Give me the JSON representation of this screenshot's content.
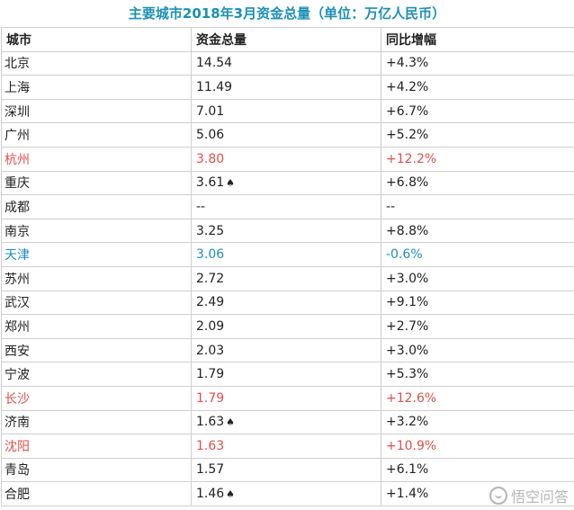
{
  "title": "主要城市2018年3月资金总量（单位：万亿人民币）",
  "headers": {
    "city": "城市",
    "total": "资金总量",
    "yoy": "同比增幅"
  },
  "colors": {
    "title": "#1b8fb8",
    "red": "#e0504a",
    "blue": "#1b8fb8"
  },
  "rows": [
    {
      "city": "北京",
      "total": "14.54",
      "mark": "",
      "yoy": "+4.3%",
      "tone": "normal"
    },
    {
      "city": "上海",
      "total": "11.49",
      "mark": "",
      "yoy": "+4.2%",
      "tone": "normal"
    },
    {
      "city": "深圳",
      "total": "7.01",
      "mark": "",
      "yoy": "+6.7%",
      "tone": "normal"
    },
    {
      "city": "广州",
      "total": "5.06",
      "mark": "",
      "yoy": "+5.2%",
      "tone": "normal"
    },
    {
      "city": "杭州",
      "total": "3.80",
      "mark": "",
      "yoy": "+12.2%",
      "tone": "red"
    },
    {
      "city": "重庆",
      "total": "3.61",
      "mark": "♠",
      "yoy": "+6.8%",
      "tone": "normal"
    },
    {
      "city": "成都",
      "total": "--",
      "mark": "",
      "yoy": "--",
      "tone": "normal"
    },
    {
      "city": "南京",
      "total": "3.25",
      "mark": "",
      "yoy": "+8.8%",
      "tone": "normal"
    },
    {
      "city": "天津",
      "total": "3.06",
      "mark": "",
      "yoy": "-0.6%",
      "tone": "blue"
    },
    {
      "city": "苏州",
      "total": "2.72",
      "mark": "",
      "yoy": "+3.0%",
      "tone": "normal"
    },
    {
      "city": "武汉",
      "total": "2.49",
      "mark": "",
      "yoy": "+9.1%",
      "tone": "normal"
    },
    {
      "city": "郑州",
      "total": "2.09",
      "mark": "",
      "yoy": "+2.7%",
      "tone": "normal"
    },
    {
      "city": "西安",
      "total": "2.03",
      "mark": "",
      "yoy": "+3.0%",
      "tone": "normal"
    },
    {
      "city": "宁波",
      "total": "1.79",
      "mark": "",
      "yoy": "+5.3%",
      "tone": "normal"
    },
    {
      "city": "长沙",
      "total": "1.79",
      "mark": "",
      "yoy": "+12.6%",
      "tone": "red"
    },
    {
      "city": "济南",
      "total": "1.63",
      "mark": "♠",
      "yoy": "+3.2%",
      "tone": "normal"
    },
    {
      "city": "沈阳",
      "total": "1.63",
      "mark": "",
      "yoy": "+10.9%",
      "tone": "red"
    },
    {
      "city": "青岛",
      "total": "1.57",
      "mark": "",
      "yoy": "+6.1%",
      "tone": "normal"
    },
    {
      "city": "合肥",
      "total": "1.46",
      "mark": "♠",
      "yoy": "+1.4%",
      "tone": "normal"
    }
  ],
  "watermark": {
    "icon": "chat-bubble-icon",
    "text": "悟空问答"
  }
}
